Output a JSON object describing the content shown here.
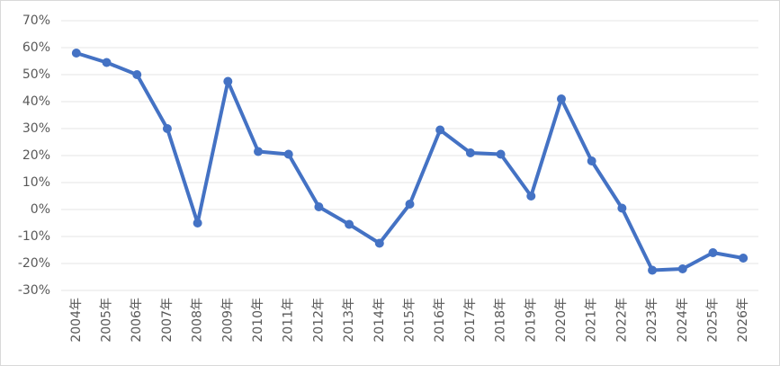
{
  "chart_data": {
    "type": "line",
    "categories": [
      "2004年",
      "2005年",
      "2006年",
      "2007年",
      "2008年",
      "2009年",
      "2010年",
      "2011年",
      "2012年",
      "2013年",
      "2014年",
      "2015年",
      "2016年",
      "2017年",
      "2018年",
      "2019年",
      "2020年",
      "2021年",
      "2022年",
      "2023年",
      "2024年",
      "2025年",
      "2026年"
    ],
    "series": [
      {
        "color": "#4472c4",
        "values": [
          58,
          54.5,
          50,
          30,
          -5,
          47.5,
          21.5,
          20.5,
          1,
          -5.5,
          -12.5,
          2,
          29.5,
          21,
          20.5,
          5,
          41,
          18,
          0.5,
          -22.5,
          -22,
          -16,
          -18
        ]
      }
    ],
    "ylim": [
      -30,
      70
    ],
    "yticks": [
      {
        "value": -30,
        "label": "-30%"
      },
      {
        "value": -20,
        "label": "-20%"
      },
      {
        "value": -10,
        "label": "-10%"
      },
      {
        "value": 0,
        "label": "0%"
      },
      {
        "value": 10,
        "label": "10%"
      },
      {
        "value": 20,
        "label": "20%"
      },
      {
        "value": 30,
        "label": "30%"
      },
      {
        "value": 40,
        "label": "40%"
      },
      {
        "value": 50,
        "label": "50%"
      },
      {
        "value": 60,
        "label": "60%"
      },
      {
        "value": 70,
        "label": "70%"
      }
    ],
    "grid": true
  }
}
